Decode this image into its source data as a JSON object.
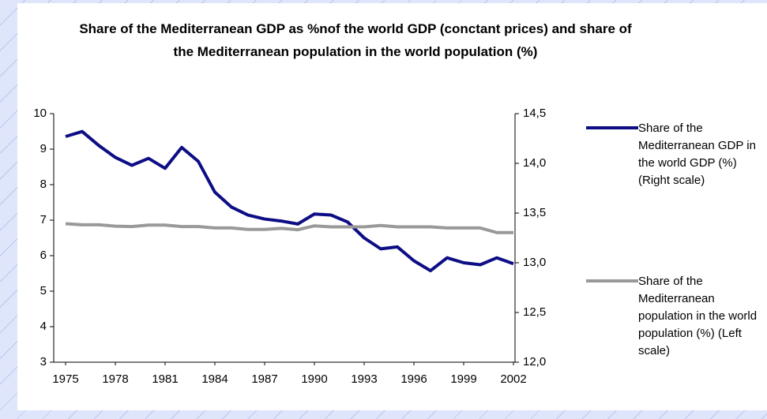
{
  "chart_data": {
    "type": "line",
    "title": "Share of the Mediterranean GDP as %nof the world GDP (conctant prices) and share of the Mediterranean population in the world population (%)",
    "x": [
      1975,
      1976,
      1977,
      1978,
      1979,
      1980,
      1981,
      1982,
      1983,
      1984,
      1985,
      1986,
      1987,
      1988,
      1989,
      1990,
      1991,
      1992,
      1993,
      1994,
      1995,
      1996,
      1997,
      1998,
      1999,
      2000,
      2001,
      2002
    ],
    "xlim": [
      1975,
      2002
    ],
    "xticks": [
      1975,
      1978,
      1981,
      1984,
      1987,
      1990,
      1993,
      1996,
      1999,
      2002
    ],
    "ylim": [
      3,
      10
    ],
    "yticks": [
      3,
      4,
      5,
      6,
      7,
      8,
      9,
      10
    ],
    "y2lim": [
      12,
      14.5
    ],
    "y2ticks": [
      {
        "value": 12,
        "label": "12,0"
      },
      {
        "value": 12.5,
        "label": "12,5"
      },
      {
        "value": 13,
        "label": "13,0"
      },
      {
        "value": 13.5,
        "label": "13,5"
      },
      {
        "value": 14,
        "label": "14,0"
      },
      {
        "value": 14.5,
        "label": "14,5"
      }
    ],
    "legend": "right",
    "series": [
      {
        "name": "Share of the Mediterranean GDP in the world GDP (%) (Right scale)",
        "color": "#0d0d85",
        "axis": "y2",
        "values": [
          14.27,
          14.32,
          14.18,
          14.06,
          13.98,
          14.05,
          13.95,
          14.16,
          14.02,
          13.71,
          13.56,
          13.48,
          13.44,
          13.42,
          13.39,
          13.49,
          13.48,
          13.41,
          13.25,
          13.14,
          13.16,
          13.02,
          12.92,
          13.05,
          13.0,
          12.98,
          13.05,
          12.99
        ]
      },
      {
        "name": "Share of the Mediterranean population in the world population (%) (Left scale)",
        "color": "#999999",
        "values": [
          6.9,
          6.87,
          6.87,
          6.83,
          6.82,
          6.86,
          6.86,
          6.82,
          6.82,
          6.78,
          6.78,
          6.74,
          6.74,
          6.77,
          6.73,
          6.84,
          6.81,
          6.81,
          6.81,
          6.85,
          6.81,
          6.81,
          6.81,
          6.78,
          6.78,
          6.78,
          6.65,
          6.65
        ]
      }
    ]
  }
}
